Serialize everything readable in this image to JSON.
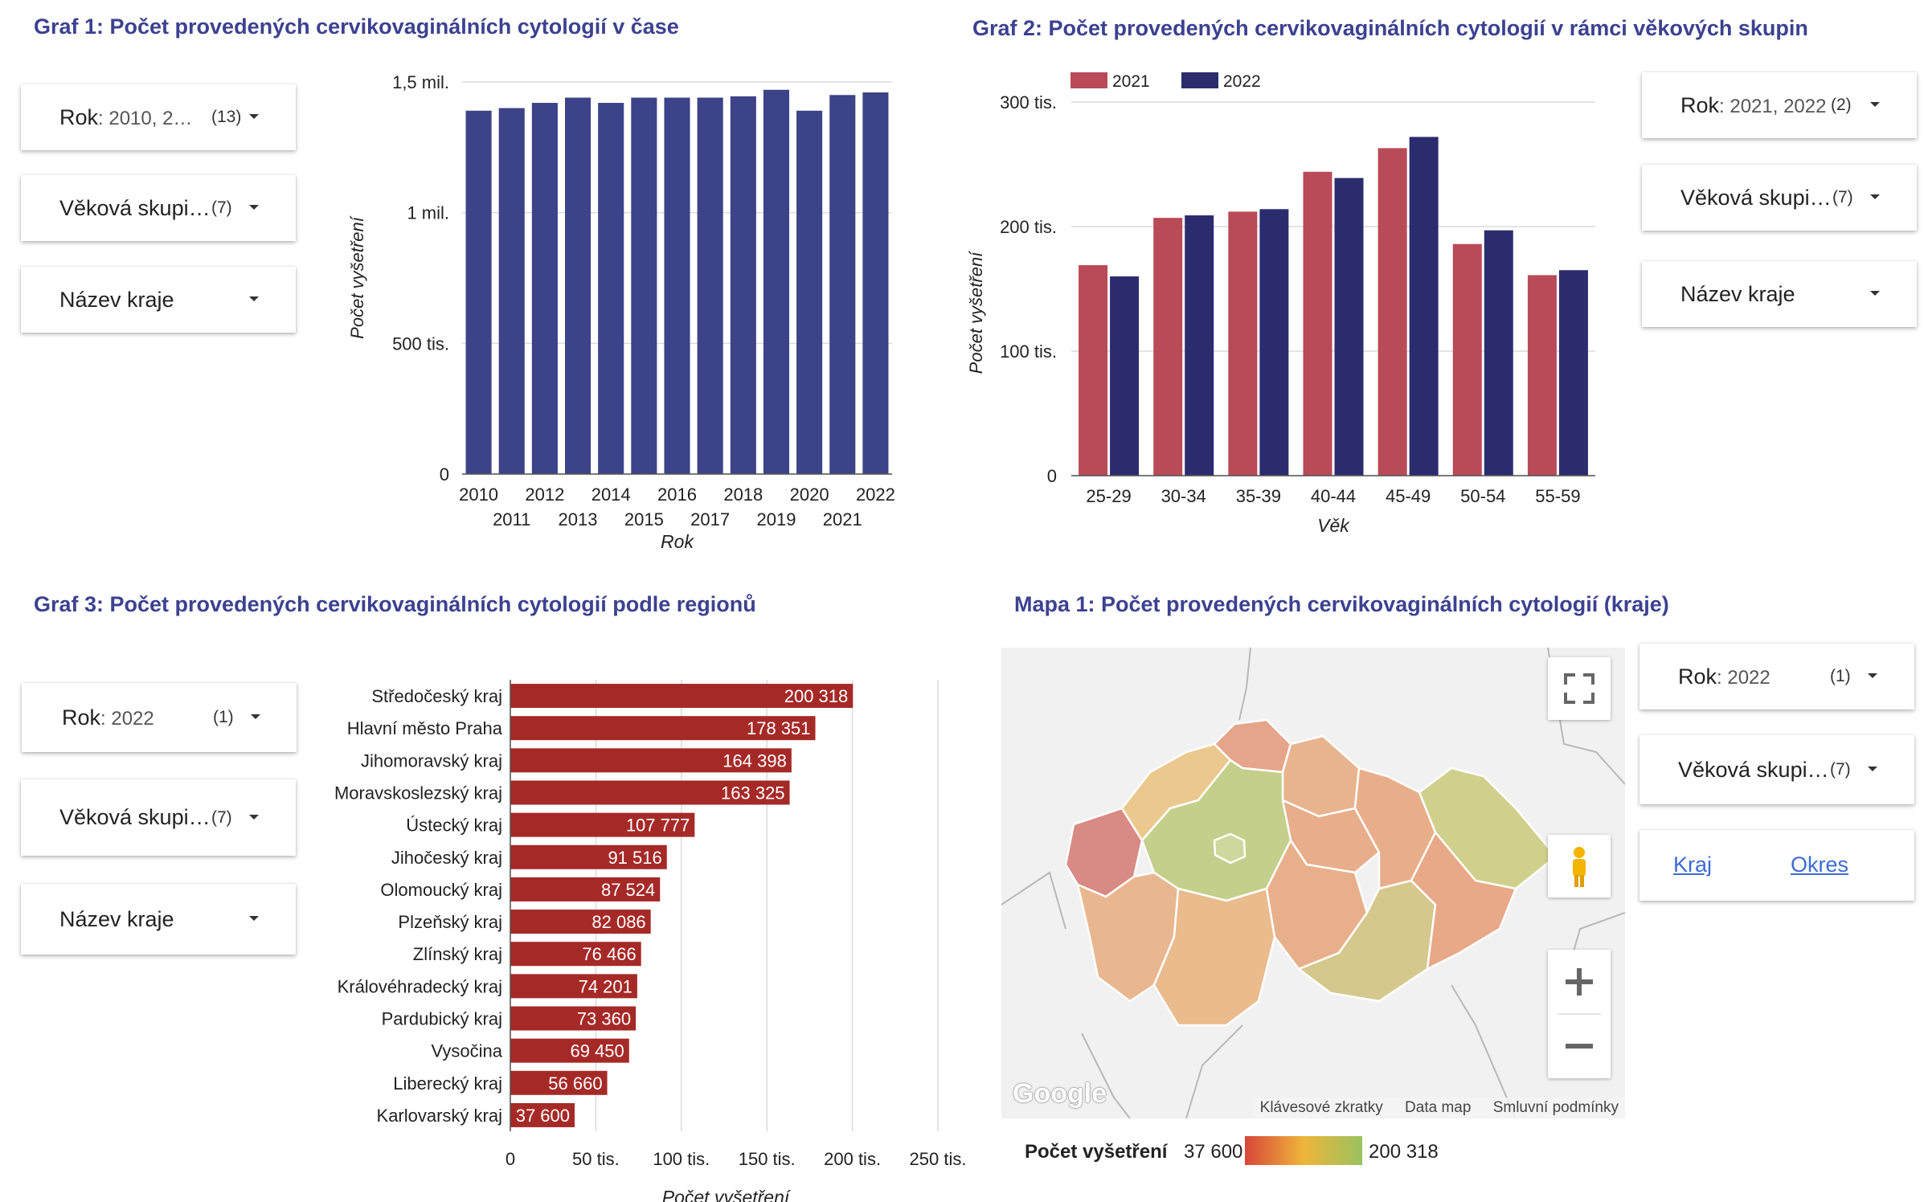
{
  "titles": {
    "g1": "Graf 1: Počet provedených cervikovaginálních cytologií v čase",
    "g2": "Graf 2: Počet provedených cervikovaginálních cytologií v rámci věkových skupin",
    "g3": "Graf 3: Počet provedených cervikovaginálních cytologií podle regionů",
    "m1": "Mapa 1: Počet provedených cervikovaginálních cytologií (kraje)"
  },
  "filters": {
    "g1": [
      {
        "label": "Rok",
        "value": ": 2010, 2…",
        "count": "(13)"
      },
      {
        "label": "Věková skupi…",
        "value": "",
        "count": "(7)"
      },
      {
        "label": "Název kraje",
        "value": "",
        "count": ""
      }
    ],
    "g2": [
      {
        "label": "Rok",
        "value": ": 2021, 2022",
        "count": "(2)"
      },
      {
        "label": "Věková skupi…",
        "value": "",
        "count": "(7)"
      },
      {
        "label": "Název kraje",
        "value": "",
        "count": ""
      }
    ],
    "g3": [
      {
        "label": "Rok",
        "value": ": 2022",
        "count": "(1)"
      },
      {
        "label": "Věková skupi…",
        "value": "",
        "count": "(7)"
      },
      {
        "label": "Název kraje",
        "value": "",
        "count": ""
      }
    ],
    "m1": [
      {
        "label": "Rok",
        "value": ": 2022",
        "count": "(1)"
      },
      {
        "label": "Věková skupi…",
        "value": "",
        "count": "(7)"
      }
    ]
  },
  "map": {
    "links": [
      "Kraj",
      "Okres"
    ],
    "google": "Google",
    "footer": [
      "Klávesové zkratky",
      "Data map",
      "Smluvní podmínky"
    ],
    "legend": {
      "title": "Počet vyšetření",
      "min": "37 600",
      "max": "200 318"
    },
    "colors": {
      "low": "#d7463a",
      "mid": "#efb53b",
      "high": "#9ac260"
    },
    "icons": [
      "fullscreen-icon",
      "pegman-icon",
      "zoom-in-icon",
      "zoom-out-icon"
    ]
  },
  "chart_data": [
    {
      "id": "g1",
      "type": "bar",
      "categories": [
        "2010",
        "2011",
        "2012",
        "2013",
        "2014",
        "2015",
        "2016",
        "2017",
        "2018",
        "2019",
        "2020",
        "2021",
        "2022"
      ],
      "values": [
        1390000,
        1400000,
        1420000,
        1440000,
        1420000,
        1440000,
        1440000,
        1440000,
        1445000,
        1470000,
        1390000,
        1450000,
        1460000
      ],
      "xlabel": "Rok",
      "ylabel": "Počet vyšetření",
      "ylim": [
        0,
        1500000
      ],
      "yticks": [
        0,
        500000,
        1000000,
        1500000
      ],
      "ytick_labels": [
        "0",
        "500 tis.",
        "1 mil.",
        "1,5 mil."
      ],
      "color": "#3c4388",
      "grid": true
    },
    {
      "id": "g2",
      "type": "bar",
      "categories": [
        "25-29",
        "30-34",
        "35-39",
        "40-44",
        "45-49",
        "50-54",
        "55-59"
      ],
      "series": [
        {
          "name": "2021",
          "values": [
            169000,
            207000,
            212000,
            244000,
            263000,
            186000,
            161000
          ],
          "color": "#b94a58"
        },
        {
          "name": "2022",
          "values": [
            160000,
            209000,
            214000,
            239000,
            272000,
            197000,
            165000
          ],
          "color": "#2b2c6e"
        }
      ],
      "xlabel": "Věk",
      "ylabel": "Počet vyšetření",
      "ylim": [
        0,
        300000
      ],
      "yticks": [
        0,
        100000,
        200000,
        300000
      ],
      "ytick_labels": [
        "0",
        "100 tis.",
        "200 tis.",
        "300 tis."
      ],
      "legend": "top-left",
      "grid": true
    },
    {
      "id": "g3",
      "type": "bar",
      "orientation": "horizontal",
      "categories": [
        "Středočeský kraj",
        "Hlavní město Praha",
        "Jihomoravský kraj",
        "Moravskoslezský kraj",
        "Ústecký kraj",
        "Jihočeský kraj",
        "Olomoucký kraj",
        "Plzeňský kraj",
        "Zlínský kraj",
        "Královéhradecký kraj",
        "Pardubický kraj",
        "Vysočina",
        "Liberecký kraj",
        "Karlovarský kraj"
      ],
      "values": [
        200318,
        178351,
        164398,
        163325,
        107777,
        91516,
        87524,
        82086,
        76466,
        74201,
        73360,
        69450,
        56660,
        37600
      ],
      "value_labels": [
        "200 318",
        "178 351",
        "164 398",
        "163 325",
        "107 777",
        "91 516",
        "87 524",
        "82 086",
        "76 466",
        "74 201",
        "73 360",
        "69 450",
        "56 660",
        "37 600"
      ],
      "xlabel": "Počet vyšetření",
      "xlim": [
        0,
        250000
      ],
      "xticks": [
        0,
        50000,
        100000,
        150000,
        200000,
        250000
      ],
      "xtick_labels": [
        "0",
        "50 tis.",
        "100 tis.",
        "150 tis.",
        "200 tis.",
        "250 tis."
      ],
      "color": "#a52a27",
      "grid": true
    }
  ]
}
